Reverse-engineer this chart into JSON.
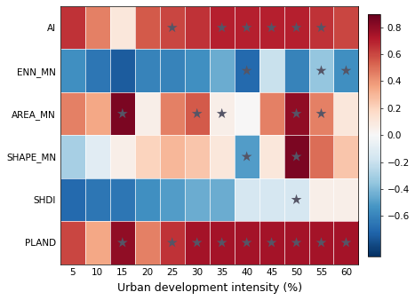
{
  "rows": [
    "AI",
    "ENN_MN",
    "AREA_MN",
    "SHAPE_MN",
    "SHDI",
    "PLAND"
  ],
  "cols": [
    5,
    10,
    15,
    20,
    25,
    30,
    35,
    40,
    45,
    50,
    55,
    60
  ],
  "values": [
    [
      0.65,
      0.45,
      0.1,
      0.55,
      0.6,
      0.65,
      0.7,
      0.7,
      0.7,
      0.7,
      0.65,
      0.6
    ],
    [
      -0.55,
      -0.65,
      -0.75,
      -0.6,
      -0.6,
      -0.55,
      -0.45,
      -0.7,
      -0.2,
      -0.6,
      -0.35,
      -0.55
    ],
    [
      0.45,
      0.35,
      0.85,
      0.05,
      0.45,
      0.55,
      0.05,
      0.0,
      0.45,
      0.8,
      0.45,
      0.1
    ],
    [
      -0.3,
      -0.1,
      0.05,
      0.2,
      0.3,
      0.25,
      0.1,
      -0.5,
      0.1,
      0.85,
      0.5,
      0.25
    ],
    [
      -0.7,
      -0.65,
      -0.65,
      -0.55,
      -0.5,
      -0.45,
      -0.45,
      -0.15,
      -0.15,
      -0.15,
      0.05,
      0.05
    ],
    [
      0.6,
      0.35,
      0.8,
      0.45,
      0.65,
      0.75,
      0.75,
      0.75,
      0.75,
      0.75,
      0.75,
      0.75
    ]
  ],
  "stars": [
    [
      [
        0,
        4
      ],
      [
        0,
        6
      ],
      [
        0,
        7
      ],
      [
        0,
        8
      ],
      [
        0,
        9
      ],
      [
        0,
        10
      ]
    ],
    [
      [
        1,
        7
      ],
      [
        1,
        10
      ],
      [
        1,
        11
      ]
    ],
    [
      [
        2,
        2
      ],
      [
        2,
        5
      ],
      [
        2,
        6
      ],
      [
        2,
        9
      ],
      [
        2,
        10
      ]
    ],
    [
      [
        3,
        7
      ],
      [
        3,
        9
      ]
    ],
    [
      [
        4,
        9
      ]
    ],
    [
      [
        5,
        2
      ],
      [
        5,
        4
      ],
      [
        5,
        5
      ],
      [
        5,
        6
      ],
      [
        5,
        7
      ],
      [
        5,
        8
      ],
      [
        5,
        9
      ],
      [
        5,
        10
      ],
      [
        5,
        11
      ]
    ]
  ],
  "vmin": -0.9,
  "vmax": 0.9,
  "colorbar_ticks": [
    0.8,
    0.6,
    0.4,
    0.2,
    0.0,
    -0.2,
    -0.4,
    -0.6
  ],
  "xlabel": "Urban development intensity (%)",
  "figsize": [
    4.67,
    3.38
  ],
  "dpi": 100,
  "cmap": "RdBu_r",
  "star_color": "#555566",
  "star_size": 80,
  "star_marker": "*",
  "tick_fontsize": 7.5,
  "label_fontsize": 9
}
